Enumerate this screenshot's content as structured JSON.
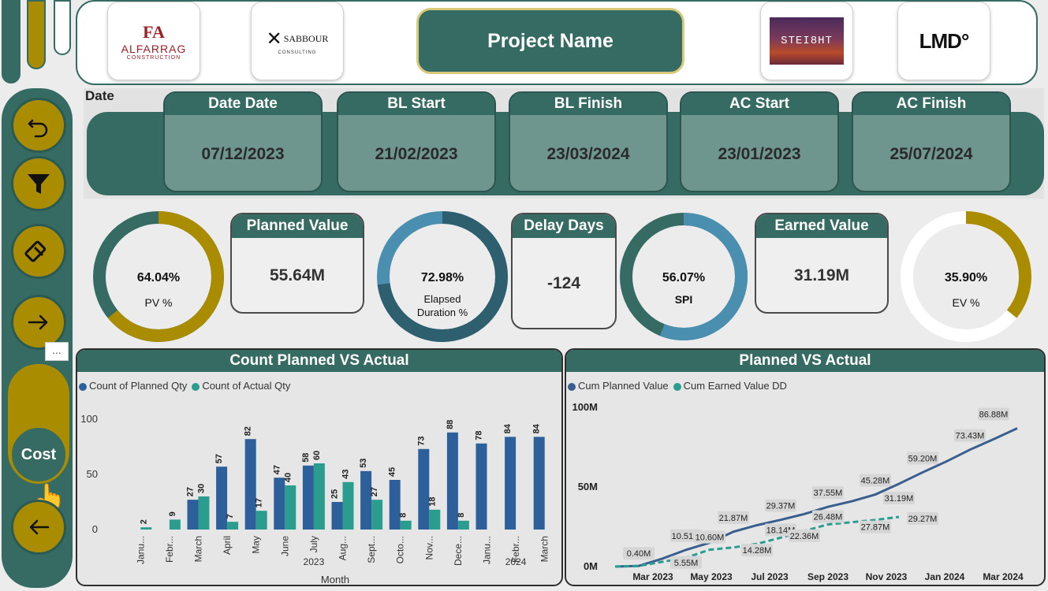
{
  "header": {
    "project_name": "Project Name",
    "logos": [
      {
        "name": "alfarrag-logo",
        "mark": "FA",
        "text": "ALFARRAG",
        "sub": "CONSTRUCTION"
      },
      {
        "name": "sabbour-logo",
        "mark": "✕",
        "text": "SABBOUR",
        "sub": "CONSULTING"
      },
      {
        "name": "steight-logo",
        "text": "STEI8HT"
      },
      {
        "name": "lmd-logo",
        "text": "LMD°"
      }
    ]
  },
  "nav": {
    "more_label": "...",
    "cost_label": "Cost",
    "icons": [
      "undo-icon",
      "filter-icon",
      "eraser-icon",
      "arrow-right-icon",
      "arrow-left-icon"
    ]
  },
  "dates": {
    "section_label": "Date",
    "cards": [
      {
        "label": "Date Date",
        "value": "07/12/2023"
      },
      {
        "label": "BL Start",
        "value": "21/02/2023"
      },
      {
        "label": "BL Finish",
        "value": "23/03/2024"
      },
      {
        "label": "AC Start",
        "value": "23/01/2023"
      },
      {
        "label": "AC Finish",
        "value": "25/07/2024"
      }
    ]
  },
  "kpis": {
    "pv_pct": {
      "value": "64.04%",
      "label": "PV %",
      "fraction": 0.6404,
      "color": "#a98c00",
      "track": "#356b63"
    },
    "planned_value": {
      "label": "Planned Value",
      "value": "55.64M"
    },
    "elapsed": {
      "value": "72.98%",
      "label_line1": "Elapsed",
      "label_line2": "Duration %",
      "fraction": 0.7298,
      "color": "#2d5f6e",
      "track": "#4a8fb0"
    },
    "delay_days": {
      "label": "Delay Days",
      "value": "-124"
    },
    "spi": {
      "value": "56.07%",
      "label": "SPI",
      "fraction": 0.5607,
      "color": "#4a8fb0",
      "track": "#356b63"
    },
    "earned_value": {
      "label": "Earned Value",
      "value": "31.19M"
    },
    "ev_pct": {
      "value": "35.90%",
      "label": "EV %",
      "fraction": 0.359,
      "color": "#a98c00",
      "track": "#ffffff"
    }
  },
  "chart_data": [
    {
      "type": "bar",
      "title": "Count Planned VS Actual",
      "xlabel": "Month",
      "ylim": [
        0,
        100
      ],
      "yticks": [
        0,
        50,
        100
      ],
      "categories": [
        "Janu...",
        "Febr...",
        "March",
        "April",
        "May",
        "June",
        "July",
        "Aug...",
        "Sept...",
        "Octo...",
        "Nov...",
        "Dece...",
        "Janu...",
        "Febr...",
        "March"
      ],
      "year_labels": [
        {
          "label": "2023",
          "at": 6
        },
        {
          "label": "2024",
          "at": 13
        }
      ],
      "series": [
        {
          "name": "Count of Planned Qty",
          "color": "#2d5f9a",
          "values": [
            null,
            null,
            27,
            57,
            82,
            47,
            58,
            25,
            53,
            45,
            73,
            88,
            78,
            84,
            84
          ]
        },
        {
          "name": "Count of Actual Qty",
          "color": "#2a9d8f",
          "values": [
            2,
            9,
            30,
            7,
            17,
            40,
            60,
            43,
            27,
            8,
            18,
            8,
            null,
            null,
            null
          ]
        }
      ]
    },
    {
      "type": "line",
      "title": "Planned VS Actual",
      "ylim": [
        0,
        100
      ],
      "yticks": [
        {
          "v": 0,
          "label": "0M"
        },
        {
          "v": 50,
          "label": "50M"
        },
        {
          "v": 100,
          "label": "100M"
        }
      ],
      "xticks": [
        "Mar 2023",
        "May 2023",
        "Jul 2023",
        "Sep 2023",
        "Nov 2023",
        "Jan 2024",
        "Mar 2024"
      ],
      "series": [
        {
          "name": "Cum Planned Value",
          "color": "#3a5f8f",
          "points": [
            [
              0,
              0
            ],
            [
              1,
              0.4
            ],
            [
              2,
              5
            ],
            [
              3,
              10.51
            ],
            [
              4,
              15
            ],
            [
              5,
              21.87
            ],
            [
              6,
              26
            ],
            [
              7,
              29.37
            ],
            [
              8,
              33
            ],
            [
              9,
              37.55
            ],
            [
              10,
              41
            ],
            [
              11,
              45.28
            ],
            [
              12,
              52
            ],
            [
              13,
              59.2
            ],
            [
              14,
              66
            ],
            [
              15,
              73.43
            ],
            [
              16,
              80
            ],
            [
              17,
              86.88
            ]
          ]
        },
        {
          "name": "Cum Earned Value DD",
          "color": "#2a9d8f",
          "dashed": true,
          "points": [
            [
              0,
              0
            ],
            [
              1,
              0.4
            ],
            [
              2,
              3
            ],
            [
              3,
              5.55
            ],
            [
              4,
              10.6
            ],
            [
              5,
              12
            ],
            [
              6,
              14.28
            ],
            [
              7,
              18.14
            ],
            [
              8,
              22.36
            ],
            [
              9,
              26.48
            ],
            [
              10,
              27.87
            ],
            [
              11,
              29.27
            ],
            [
              12,
              31.19
            ]
          ]
        }
      ],
      "labels": [
        {
          "text": "0.40M",
          "i": 1,
          "v": 0.4,
          "dy": -16
        },
        {
          "text": "5.55M",
          "i": 3,
          "v": 5.55,
          "dy": 6
        },
        {
          "text": "10.51M",
          "i": 3,
          "v": 10.51,
          "dy": -18
        },
        {
          "text": "10.60M",
          "i": 4,
          "v": 10.6,
          "dy": -16
        },
        {
          "text": "21.87M",
          "i": 5,
          "v": 21.87,
          "dy": -18
        },
        {
          "text": "14.28M",
          "i": 6,
          "v": 14.28,
          "dy": 8
        },
        {
          "text": "29.37M",
          "i": 7,
          "v": 29.37,
          "dy": -18
        },
        {
          "text": "18.14M",
          "i": 7,
          "v": 18.14,
          "dy": -10
        },
        {
          "text": "22.36M",
          "i": 8,
          "v": 22.36,
          "dy": 6
        },
        {
          "text": "37.55M",
          "i": 9,
          "v": 37.55,
          "dy": -18
        },
        {
          "text": "26.48M",
          "i": 9,
          "v": 26.48,
          "dy": -10
        },
        {
          "text": "45.28M",
          "i": 11,
          "v": 45.28,
          "dy": -18
        },
        {
          "text": "27.87M",
          "i": 11,
          "v": 27.87,
          "dy": 6
        },
        {
          "text": "31.19M",
          "i": 12,
          "v": 31.19,
          "dy": -24
        },
        {
          "text": "29.27M",
          "i": 13,
          "v": 29.27,
          "dy": -2
        },
        {
          "text": "59.20M",
          "i": 13,
          "v": 59.2,
          "dy": -18
        },
        {
          "text": "73.43M",
          "i": 15,
          "v": 73.43,
          "dy": -18
        },
        {
          "text": "86.88M",
          "i": 16,
          "v": 86.88,
          "dy": -18
        }
      ]
    }
  ]
}
